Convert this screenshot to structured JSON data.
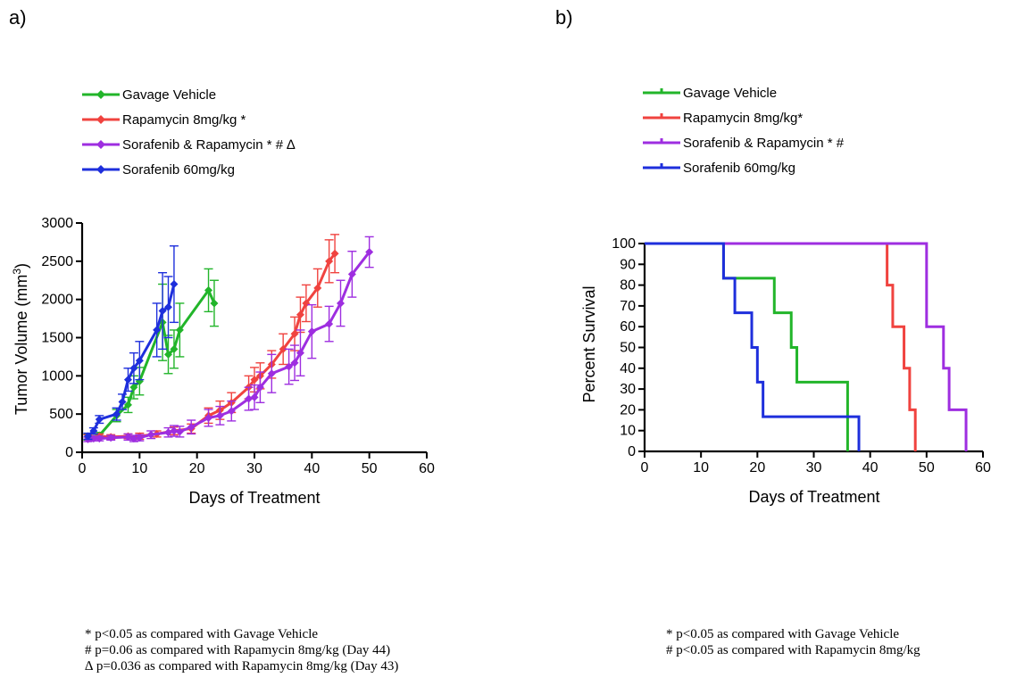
{
  "chart_data": [
    {
      "type": "line",
      "panel_label": "a)",
      "xlabel": "Days of Treatment",
      "ylabel_main": "Tumor Volume (mm",
      "ylabel_sup": "3",
      "ylabel_end": ")",
      "xlim": [
        0,
        60
      ],
      "ylim": [
        0,
        3000
      ],
      "xticks": [
        0,
        10,
        20,
        30,
        40,
        50,
        60
      ],
      "yticks": [
        0,
        500,
        1000,
        1500,
        2000,
        2500,
        3000
      ],
      "legend_placement": "top-left, above plot",
      "series": [
        {
          "name": "Gavage Vehicle",
          "color": "#22b52a",
          "x": [
            1,
            3,
            6,
            8,
            9,
            10,
            14,
            15,
            16,
            17,
            22,
            23
          ],
          "y": [
            200,
            220,
            480,
            620,
            850,
            930,
            1700,
            1280,
            1350,
            1600,
            2120,
            1950
          ],
          "err": [
            40,
            40,
            80,
            100,
            150,
            180,
            500,
            250,
            250,
            350,
            280,
            300
          ]
        },
        {
          "name": "Rapamycin 8mg/kg *",
          "color": "#f0433f",
          "x": [
            1,
            3,
            5,
            8,
            10,
            13,
            16,
            19,
            22,
            24,
            26,
            29,
            30,
            31,
            33,
            35,
            37,
            38,
            39,
            41,
            43,
            44
          ],
          "y": [
            200,
            210,
            200,
            210,
            210,
            240,
            280,
            310,
            480,
            550,
            650,
            850,
            950,
            1000,
            1150,
            1350,
            1550,
            1800,
            1950,
            2150,
            2500,
            2600
          ],
          "err": [
            30,
            30,
            30,
            30,
            40,
            40,
            50,
            60,
            100,
            120,
            130,
            150,
            160,
            170,
            180,
            200,
            220,
            230,
            240,
            250,
            280,
            250
          ]
        },
        {
          "name": "Sorafenib & Rapamycin * # ∆",
          "color": "#9e2ee0",
          "x": [
            1,
            2,
            3,
            5,
            8,
            9,
            10,
            12,
            15,
            16,
            17,
            19,
            22,
            24,
            26,
            29,
            30,
            31,
            33,
            36,
            37,
            38,
            40,
            43,
            45,
            47,
            50
          ],
          "y": [
            170,
            180,
            180,
            190,
            200,
            180,
            190,
            230,
            260,
            280,
            270,
            330,
            450,
            480,
            540,
            700,
            720,
            850,
            1030,
            1120,
            1170,
            1300,
            1580,
            1680,
            1950,
            2330,
            2620
          ],
          "err": [
            30,
            30,
            30,
            30,
            40,
            40,
            40,
            50,
            60,
            70,
            70,
            90,
            110,
            120,
            130,
            150,
            160,
            200,
            250,
            230,
            230,
            300,
            350,
            230,
            300,
            300,
            200
          ]
        },
        {
          "name": "Sorafenib 60mg/kg",
          "color": "#1e2fdc",
          "x": [
            1,
            2,
            3,
            6,
            7,
            8,
            9,
            10,
            13,
            14,
            15,
            16
          ],
          "y": [
            210,
            280,
            430,
            500,
            660,
            950,
            1100,
            1200,
            1600,
            1850,
            1900,
            2200
          ],
          "err": [
            40,
            40,
            50,
            80,
            100,
            150,
            200,
            250,
            350,
            500,
            400,
            500
          ]
        }
      ],
      "footnotes": [
        "* p<0.05 as compared with Gavage Vehicle",
        "# p=0.06 as compared with Rapamycin 8mg/kg (Day 44)",
        "∆ p=0.036 as compared with Rapamycin 8mg/kg (Day 43)"
      ]
    },
    {
      "type": "line",
      "subtype": "step (Kaplan-Meier)",
      "panel_label": "b)",
      "xlabel": "Days of Treatment",
      "ylabel": "Percent Survival",
      "xlim": [
        0,
        60
      ],
      "ylim": [
        0,
        100
      ],
      "xticks": [
        0,
        10,
        20,
        30,
        40,
        50,
        60
      ],
      "yticks": [
        0,
        10,
        20,
        30,
        40,
        50,
        60,
        70,
        80,
        90,
        100
      ],
      "legend_placement": "top-left, above plot",
      "series": [
        {
          "name": "Gavage Vehicle",
          "color": "#22b52a",
          "x": [
            0,
            14,
            21,
            23,
            26,
            27,
            36
          ],
          "y": [
            100,
            83.3,
            83.3,
            66.7,
            50,
            33.3,
            16.7
          ],
          "end": [
            36,
            0
          ]
        },
        {
          "name": "Rapamycin 8mg/kg*",
          "color": "#f0433f",
          "x": [
            0,
            43,
            44,
            46,
            47,
            48
          ],
          "y": [
            100,
            80,
            60,
            40,
            20,
            0
          ]
        },
        {
          "name": "Sorafenib & Rapamycin * #",
          "color": "#9e2ee0",
          "x": [
            0,
            50,
            53,
            54,
            57
          ],
          "y": [
            100,
            60,
            40,
            20,
            0
          ]
        },
        {
          "name": "Sorafenib 60mg/kg",
          "color": "#1e2fdc",
          "x": [
            0,
            14,
            16,
            19,
            20,
            21,
            38
          ],
          "y": [
            100,
            83.3,
            66.7,
            50,
            33.3,
            16.7,
            0
          ]
        }
      ],
      "footnotes": [
        "* p<0.05 as compared with Gavage Vehicle",
        "# p<0.05 as compared with Rapamycin 8mg/kg"
      ]
    }
  ]
}
